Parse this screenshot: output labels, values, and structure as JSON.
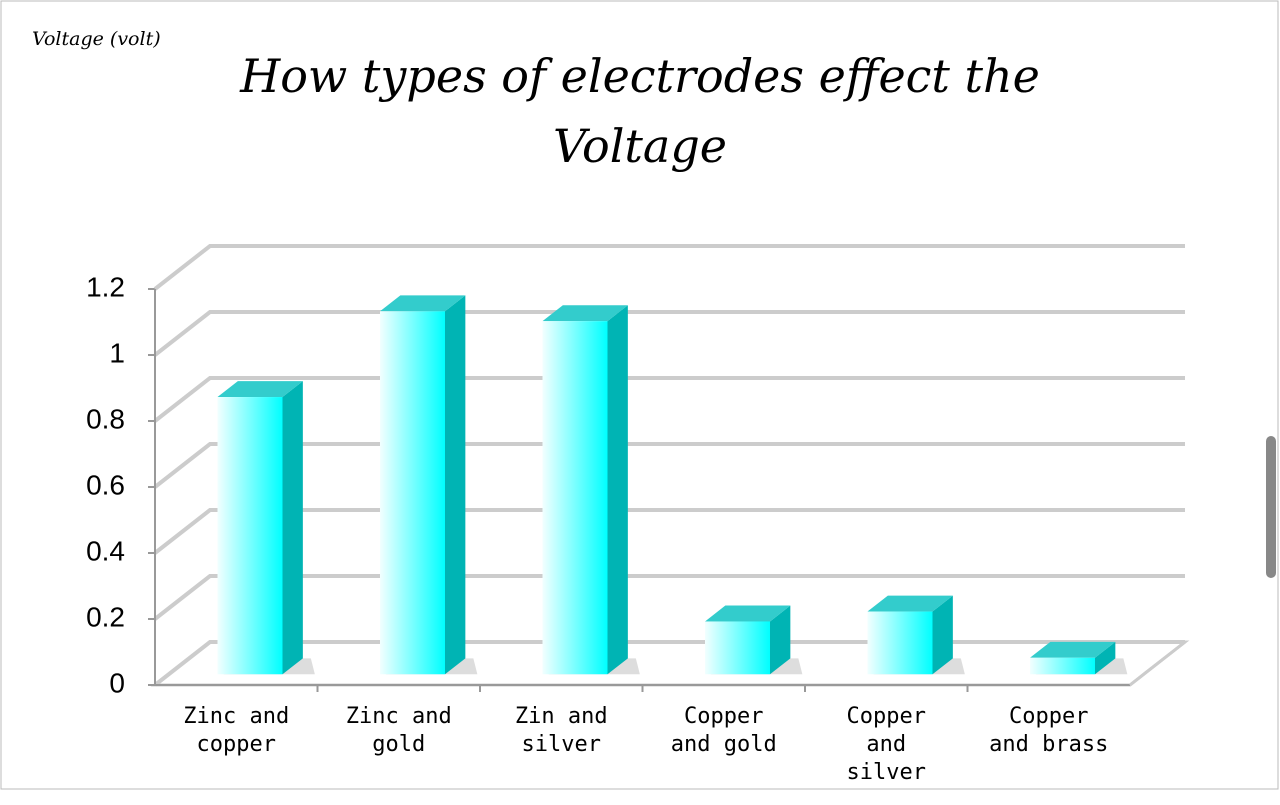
{
  "chart_data": {
    "type": "bar3d",
    "title": "How types of electrodes effect the Voltage",
    "y_label": "Voltage (volt)",
    "categories": [
      "Zinc and copper",
      "Zinc and gold",
      "Zin and silver",
      "Copper and gold",
      "Copper and silver",
      "Copper and brass"
    ],
    "values": [
      0.84,
      1.1,
      1.07,
      0.16,
      0.19,
      0.05
    ],
    "color": "#00ffff",
    "ylim": [
      0,
      1.2
    ],
    "yticks": [
      0,
      0.2,
      0.4,
      0.6,
      0.8,
      1,
      1.2
    ],
    "grid": true
  }
}
